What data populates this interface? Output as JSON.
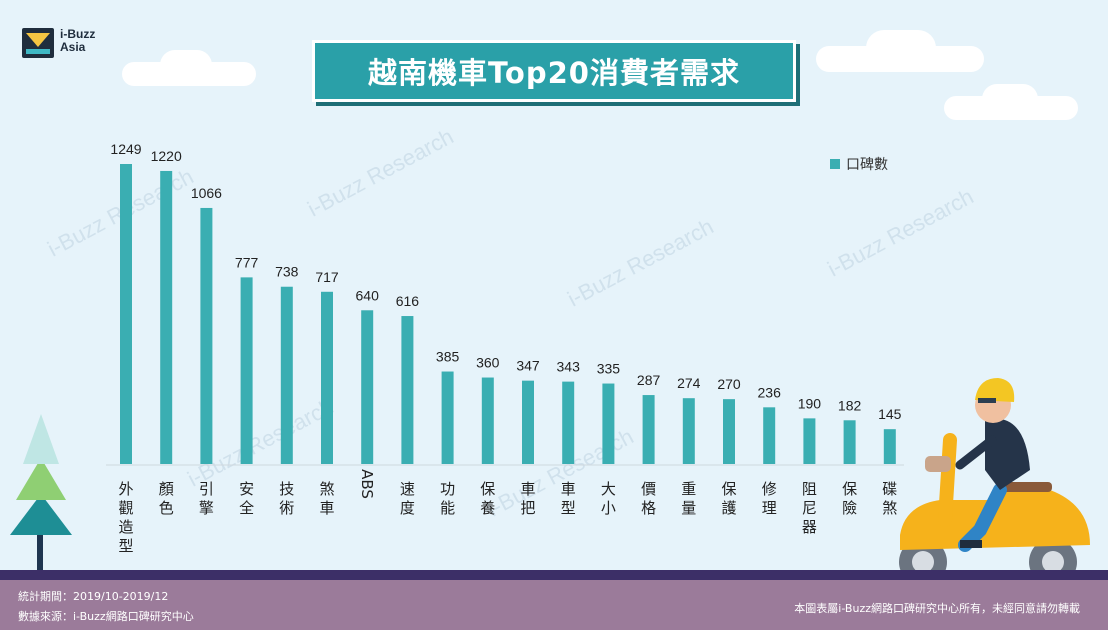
{
  "logo": {
    "line1": "i-Buzz",
    "line2": "Asia"
  },
  "colors": {
    "bar": "#3aaeb2",
    "title_bg": "#2aa0a8",
    "footer": "#9b7b9a",
    "footer_strip": "#3c2f67",
    "background": "#e6f3fa"
  },
  "watermark": "i-Buzz Research",
  "chart_data": {
    "type": "bar",
    "title": "越南機車Top20消費者需求",
    "legend": [
      "口碑數"
    ],
    "legend_position": "top-right",
    "xlabel": "",
    "ylabel": "",
    "ylim": [
      0,
      1300
    ],
    "grid": false,
    "categories": [
      "外觀造型",
      "顏色",
      "引擎",
      "安全",
      "技術",
      "煞車",
      "ABS",
      "速度",
      "功能",
      "保養",
      "車把",
      "車型",
      "大小",
      "價格",
      "重量",
      "保護",
      "修理",
      "阻尼器",
      "保險",
      "碟煞"
    ],
    "series": [
      {
        "name": "口碑數",
        "values": [
          1249,
          1220,
          1066,
          777,
          738,
          717,
          640,
          616,
          385,
          360,
          347,
          343,
          335,
          287,
          274,
          270,
          236,
          190,
          182,
          145
        ]
      }
    ]
  },
  "footer": {
    "period": "統計期間：2019/10-2019/12",
    "source": "數據來源：i-Buzz網路口碑研究中心",
    "copyright": "本圖表屬i-Buzz網路口碑研究中心所有，未經同意請勿轉載"
  }
}
